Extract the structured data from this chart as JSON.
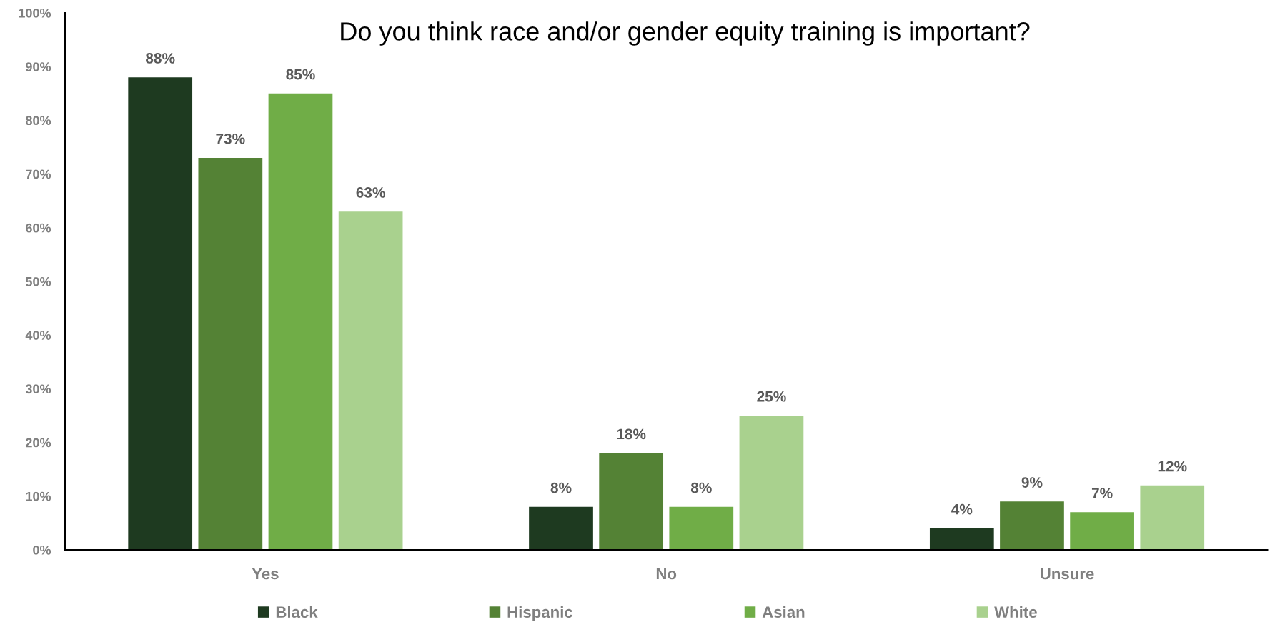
{
  "chart_data": {
    "type": "bar",
    "title": "Do you think race and/or gender equity training is important?",
    "categories": [
      "Yes",
      "No",
      "Unsure"
    ],
    "series": [
      {
        "name": "Black",
        "color": "#1e3a20",
        "values": [
          88,
          8,
          4
        ],
        "value_labels": [
          "88%",
          "8%",
          "4%"
        ]
      },
      {
        "name": "Hispanic",
        "color": "#548235",
        "values": [
          73,
          18,
          9
        ],
        "value_labels": [
          "73%",
          "18%",
          "9%"
        ]
      },
      {
        "name": "Asian",
        "color": "#70ad47",
        "values": [
          85,
          8,
          7
        ],
        "value_labels": [
          "85%",
          "8%",
          "7%"
        ]
      },
      {
        "name": "White",
        "color": "#a9d18e",
        "values": [
          63,
          25,
          12
        ],
        "value_labels": [
          "63%",
          "25%",
          "12%"
        ]
      }
    ],
    "ylim": [
      0,
      100
    ],
    "yticks": [
      {
        "value": 0,
        "label": "0%"
      },
      {
        "value": 10,
        "label": "10%"
      },
      {
        "value": 20,
        "label": "20%"
      },
      {
        "value": 30,
        "label": "30%"
      },
      {
        "value": 40,
        "label": "40%"
      },
      {
        "value": 50,
        "label": "50%"
      },
      {
        "value": 60,
        "label": "60%"
      },
      {
        "value": 70,
        "label": "70%"
      },
      {
        "value": 80,
        "label": "80%"
      },
      {
        "value": 90,
        "label": "90%"
      },
      {
        "value": 100,
        "label": "100%"
      }
    ],
    "grid": false,
    "legend": "bottom"
  }
}
